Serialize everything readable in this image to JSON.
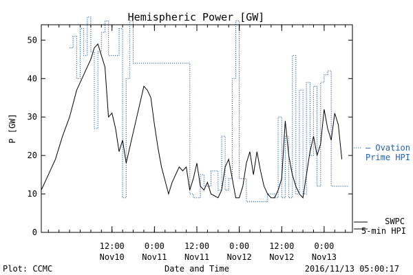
{
  "chart_data": {
    "type": "line",
    "title": "Hemispheric Power [GW]",
    "xlabel": "Date and Time",
    "ylabel": "P [GW]",
    "ylim": [
      0,
      54
    ],
    "y_ticks": [
      0,
      10,
      20,
      30,
      40,
      50
    ],
    "xlim": [
      "2016-11-09 16:00",
      "2016-11-13 08:00"
    ],
    "x_ticks": [
      {
        "x": "2016-11-10 12:00",
        "line1": "12:00",
        "line2": "Nov10"
      },
      {
        "x": "2016-11-11 00:00",
        "line1": "0:00",
        "line2": "Nov11"
      },
      {
        "x": "2016-11-11 12:00",
        "line1": "12:00",
        "line2": "Nov11"
      },
      {
        "x": "2016-11-12 00:00",
        "line1": "0:00",
        "line2": "Nov12"
      },
      {
        "x": "2016-11-12 12:00",
        "line1": "12:00",
        "line2": "Nov12"
      },
      {
        "x": "2016-11-13 00:00",
        "line1": "0:00",
        "line2": "Nov13"
      }
    ],
    "x_minor_ticks_hours": 3,
    "grid": false,
    "legend_position": "right",
    "series": [
      {
        "name": "Ovation Prime HPI",
        "legend_line1": "Ovation",
        "legend_line2": "Prime HPI",
        "color": "#1f5fbf",
        "style": "dotted-step",
        "points": [
          [
            "2016-11-10 00:00",
            48
          ],
          [
            "2016-11-10 01:00",
            51
          ],
          [
            "2016-11-10 02:00",
            40
          ],
          [
            "2016-11-10 03:00",
            53
          ],
          [
            "2016-11-10 04:00",
            46
          ],
          [
            "2016-11-10 05:00",
            56
          ],
          [
            "2016-11-10 06:00",
            47
          ],
          [
            "2016-11-10 07:00",
            27
          ],
          [
            "2016-11-10 08:00",
            47
          ],
          [
            "2016-11-10 09:00",
            52
          ],
          [
            "2016-11-10 10:00",
            55
          ],
          [
            "2016-11-10 11:00",
            46
          ],
          [
            "2016-11-10 14:00",
            53
          ],
          [
            "2016-11-10 15:00",
            9
          ],
          [
            "2016-11-10 16:00",
            40
          ],
          [
            "2016-11-10 17:00",
            55
          ],
          [
            "2016-11-10 18:00",
            44
          ],
          [
            "2016-11-11 04:00",
            44
          ],
          [
            "2016-11-11 10:00",
            10
          ],
          [
            "2016-11-11 11:00",
            9
          ],
          [
            "2016-11-11 13:00",
            15
          ],
          [
            "2016-11-11 14:00",
            12
          ],
          [
            "2016-11-11 16:00",
            16
          ],
          [
            "2016-11-11 18:00",
            11
          ],
          [
            "2016-11-11 19:00",
            25
          ],
          [
            "2016-11-11 20:00",
            11
          ],
          [
            "2016-11-11 21:00",
            14
          ],
          [
            "2016-11-11 22:00",
            40
          ],
          [
            "2016-11-11 23:00",
            55
          ],
          [
            "2016-11-12 00:00",
            14
          ],
          [
            "2016-11-12 02:00",
            8
          ],
          [
            "2016-11-12 06:00",
            8
          ],
          [
            "2016-11-12 08:00",
            10
          ],
          [
            "2016-11-12 10:00",
            9
          ],
          [
            "2016-11-12 11:00",
            30
          ],
          [
            "2016-11-12 12:00",
            9
          ],
          [
            "2016-11-12 13:00",
            25
          ],
          [
            "2016-11-12 14:00",
            9
          ],
          [
            "2016-11-12 15:00",
            46
          ],
          [
            "2016-11-12 16:00",
            10
          ],
          [
            "2016-11-12 17:00",
            37
          ],
          [
            "2016-11-12 18:00",
            10
          ],
          [
            "2016-11-12 19:00",
            39
          ],
          [
            "2016-11-12 20:00",
            20
          ],
          [
            "2016-11-12 21:00",
            38
          ],
          [
            "2016-11-12 22:00",
            12
          ],
          [
            "2016-11-12 23:00",
            39
          ],
          [
            "2016-11-13 00:00",
            41
          ],
          [
            "2016-11-13 01:00",
            42
          ],
          [
            "2016-11-13 02:00",
            12
          ],
          [
            "2016-11-13 07:00",
            12
          ]
        ]
      },
      {
        "name": "SWPC 5-min HPI",
        "legend_line1": "SWPC",
        "legend_line2": "5-min HPI",
        "color": "#000000",
        "style": "solid",
        "points": [
          [
            "2016-11-09 16:00",
            11
          ],
          [
            "2016-11-09 18:00",
            15
          ],
          [
            "2016-11-09 20:00",
            19
          ],
          [
            "2016-11-09 22:00",
            25
          ],
          [
            "2016-11-10 00:00",
            30
          ],
          [
            "2016-11-10 02:00",
            37
          ],
          [
            "2016-11-10 04:00",
            41
          ],
          [
            "2016-11-10 06:00",
            45
          ],
          [
            "2016-11-10 07:00",
            48
          ],
          [
            "2016-11-10 08:00",
            49
          ],
          [
            "2016-11-10 09:00",
            46
          ],
          [
            "2016-11-10 10:00",
            43
          ],
          [
            "2016-11-10 11:00",
            30
          ],
          [
            "2016-11-10 12:00",
            31
          ],
          [
            "2016-11-10 13:00",
            27
          ],
          [
            "2016-11-10 14:00",
            21
          ],
          [
            "2016-11-10 15:00",
            24
          ],
          [
            "2016-11-10 16:00",
            18
          ],
          [
            "2016-11-10 17:00",
            22
          ],
          [
            "2016-11-10 19:00",
            30
          ],
          [
            "2016-11-10 21:00",
            38
          ],
          [
            "2016-11-10 22:00",
            37
          ],
          [
            "2016-11-10 23:00",
            35
          ],
          [
            "2016-11-11 00:00",
            28
          ],
          [
            "2016-11-11 01:00",
            22
          ],
          [
            "2016-11-11 02:00",
            17
          ],
          [
            "2016-11-11 04:00",
            10
          ],
          [
            "2016-11-11 05:00",
            13
          ],
          [
            "2016-11-11 07:00",
            17
          ],
          [
            "2016-11-11 08:00",
            16
          ],
          [
            "2016-11-11 09:00",
            17
          ],
          [
            "2016-11-11 10:00",
            11
          ],
          [
            "2016-11-11 11:00",
            14
          ],
          [
            "2016-11-11 12:00",
            18
          ],
          [
            "2016-11-11 13:00",
            12
          ],
          [
            "2016-11-11 14:00",
            11
          ],
          [
            "2016-11-11 15:00",
            13
          ],
          [
            "2016-11-11 16:00",
            10
          ],
          [
            "2016-11-11 18:00",
            9
          ],
          [
            "2016-11-11 19:00",
            11
          ],
          [
            "2016-11-11 20:00",
            17
          ],
          [
            "2016-11-11 21:00",
            19
          ],
          [
            "2016-11-11 22:00",
            14
          ],
          [
            "2016-11-11 23:00",
            9
          ],
          [
            "2016-11-12 00:00",
            9
          ],
          [
            "2016-11-12 01:00",
            12
          ],
          [
            "2016-11-12 02:00",
            18
          ],
          [
            "2016-11-12 03:00",
            21
          ],
          [
            "2016-11-12 04:00",
            15
          ],
          [
            "2016-11-12 05:00",
            21
          ],
          [
            "2016-11-12 06:00",
            16
          ],
          [
            "2016-11-12 07:00",
            12
          ],
          [
            "2016-11-12 08:00",
            10
          ],
          [
            "2016-11-12 09:00",
            9
          ],
          [
            "2016-11-12 10:00",
            9
          ],
          [
            "2016-11-12 11:00",
            11
          ],
          [
            "2016-11-12 12:00",
            14
          ],
          [
            "2016-11-12 13:00",
            29
          ],
          [
            "2016-11-12 14:00",
            20
          ],
          [
            "2016-11-12 15:00",
            15
          ],
          [
            "2016-11-12 16:00",
            12
          ],
          [
            "2016-11-12 17:00",
            10
          ],
          [
            "2016-11-12 18:00",
            9
          ],
          [
            "2016-11-12 19:00",
            15
          ],
          [
            "2016-11-12 20:00",
            21
          ],
          [
            "2016-11-12 21:00",
            25
          ],
          [
            "2016-11-12 22:00",
            20
          ],
          [
            "2016-11-12 23:00",
            23
          ],
          [
            "2016-11-13 00:00",
            32
          ],
          [
            "2016-11-13 01:00",
            27
          ],
          [
            "2016-11-13 02:00",
            24
          ],
          [
            "2016-11-13 03:00",
            31
          ],
          [
            "2016-11-13 04:00",
            28
          ],
          [
            "2016-11-13 05:00",
            19
          ]
        ]
      }
    ]
  },
  "footer": {
    "plot_source": "Plot: CCMC",
    "timestamp": "2016/11/13 05:00:17"
  }
}
